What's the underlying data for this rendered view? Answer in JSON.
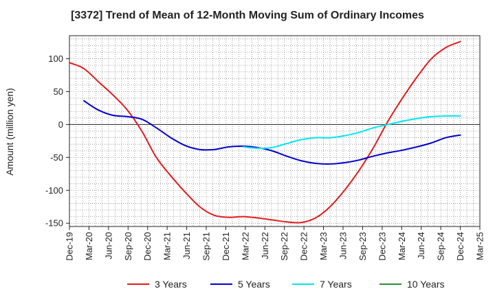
{
  "chart_data": {
    "type": "line",
    "title": "[3372]  Trend of Mean of 12-Month Moving Sum of Ordinary Incomes",
    "xlabel": "",
    "ylabel": "Amount (million yen)",
    "ylim": [
      -155,
      135
    ],
    "yticks": [
      100,
      50,
      0,
      -50,
      -100,
      -150
    ],
    "x_tick_labels": [
      "Dec-19",
      "Mar-20",
      "Jun-20",
      "Sep-20",
      "Dec-20",
      "Mar-21",
      "Jun-21",
      "Sep-21",
      "Dec-21",
      "Mar-22",
      "Jun-22",
      "Sep-22",
      "Dec-22",
      "Mar-23",
      "Jun-23",
      "Sep-23",
      "Dec-23",
      "Mar-24",
      "Jun-24",
      "Sep-24",
      "Dec-24",
      "Mar-25"
    ],
    "grid": true,
    "legend_position": "bottom",
    "series": [
      {
        "name": "3 Years",
        "color": "#e31a1c",
        "points": [
          [
            0,
            94
          ],
          [
            1,
            85
          ],
          [
            2,
            65
          ],
          [
            3,
            45
          ],
          [
            4,
            22
          ],
          [
            5,
            -10
          ],
          [
            6,
            -50
          ],
          [
            7,
            -78
          ],
          [
            8,
            -103
          ],
          [
            9,
            -125
          ],
          [
            10,
            -138
          ],
          [
            11,
            -141
          ],
          [
            12,
            -140
          ],
          [
            13,
            -142
          ],
          [
            14,
            -145
          ],
          [
            15,
            -148
          ],
          [
            16,
            -149
          ],
          [
            17,
            -142
          ],
          [
            18,
            -125
          ],
          [
            19,
            -100
          ],
          [
            20,
            -70
          ],
          [
            21,
            -35
          ],
          [
            22,
            5
          ],
          [
            23,
            40
          ],
          [
            24,
            72
          ],
          [
            25,
            100
          ],
          [
            26,
            117
          ],
          [
            27,
            126
          ]
        ]
      },
      {
        "name": "5 Years",
        "color": "#0000cc",
        "points": [
          [
            1,
            36
          ],
          [
            2,
            22
          ],
          [
            3,
            14
          ],
          [
            4,
            12
          ],
          [
            5,
            8
          ],
          [
            6,
            -5
          ],
          [
            7,
            -20
          ],
          [
            8,
            -32
          ],
          [
            9,
            -38
          ],
          [
            10,
            -38
          ],
          [
            11,
            -34
          ],
          [
            12,
            -33
          ],
          [
            13,
            -35
          ],
          [
            14,
            -40
          ],
          [
            15,
            -48
          ],
          [
            16,
            -55
          ],
          [
            17,
            -59
          ],
          [
            18,
            -60
          ],
          [
            19,
            -58
          ],
          [
            20,
            -54
          ],
          [
            21,
            -48
          ],
          [
            22,
            -43
          ],
          [
            23,
            -39
          ],
          [
            24,
            -34
          ],
          [
            25,
            -28
          ],
          [
            26,
            -20
          ],
          [
            27,
            -16
          ]
        ]
      },
      {
        "name": "7 Years",
        "color": "#00e5ee",
        "points": [
          [
            12,
            -34
          ],
          [
            13,
            -36
          ],
          [
            14,
            -35
          ],
          [
            15,
            -29
          ],
          [
            16,
            -23
          ],
          [
            17,
            -20
          ],
          [
            18,
            -20
          ],
          [
            19,
            -17
          ],
          [
            20,
            -12
          ],
          [
            21,
            -5
          ],
          [
            22,
            0
          ],
          [
            23,
            5
          ],
          [
            24,
            9
          ],
          [
            25,
            12
          ],
          [
            26,
            13
          ],
          [
            27,
            13
          ]
        ]
      },
      {
        "name": "10 Years",
        "color": "#2e8b2e",
        "points": []
      }
    ]
  }
}
